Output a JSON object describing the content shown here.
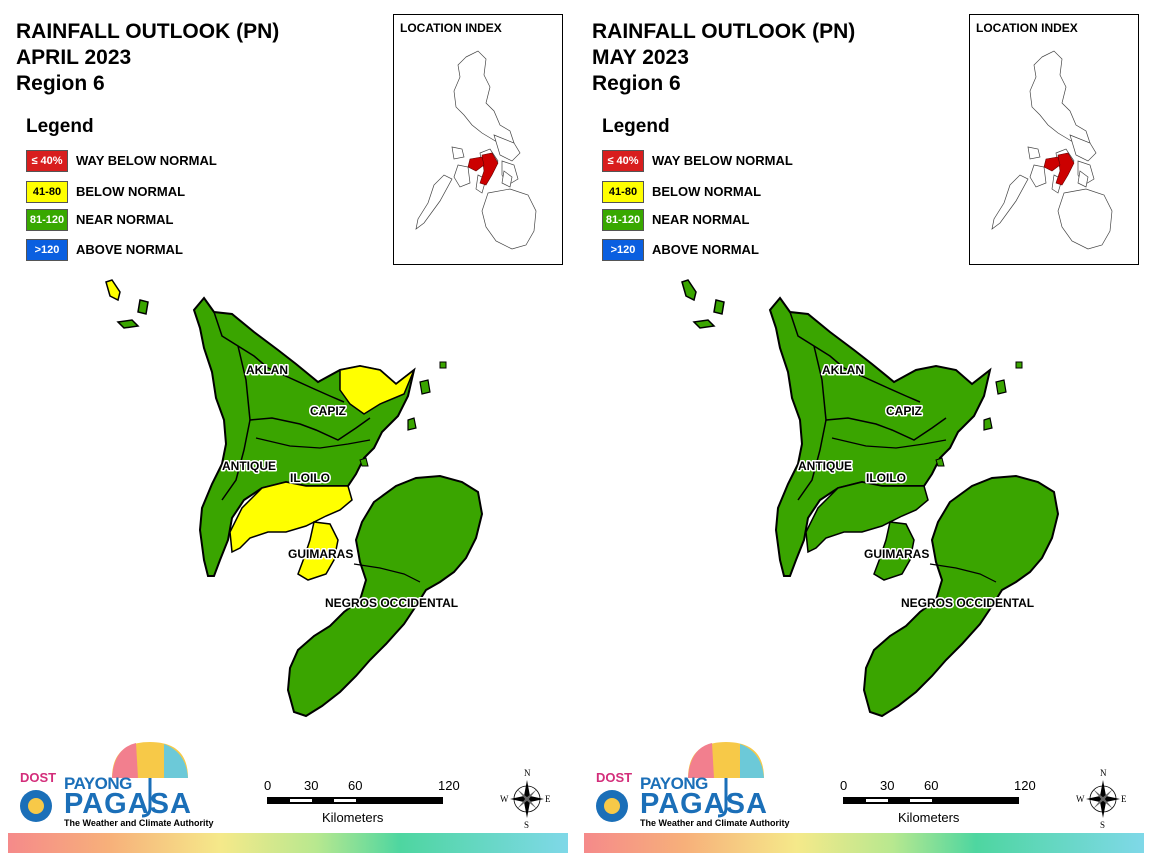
{
  "panels": [
    {
      "title_line1": "RAINFALL OUTLOOK (PN)",
      "title_line2": "APRIL 2023",
      "title_line3": "Region 6",
      "provinces": {
        "aklan": "near",
        "capiz": "near",
        "antique": "near",
        "iloilo": "near",
        "guimaras": "below",
        "negros": "near",
        "capiz_ne": "below",
        "iloilo_s": "below",
        "carabao_island": "below"
      }
    },
    {
      "title_line1": "RAINFALL OUTLOOK (PN)",
      "title_line2": "MAY 2023",
      "title_line3": "Region 6",
      "provinces": {
        "aklan": "near",
        "capiz": "near",
        "antique": "near",
        "iloilo": "near",
        "guimaras": "near",
        "negros": "near",
        "capiz_ne": "near",
        "iloilo_s": "near",
        "carabao_island": "near"
      }
    }
  ],
  "legend": {
    "title": "Legend",
    "items": [
      {
        "range": "≤ 40%",
        "label": "WAY BELOW NORMAL",
        "color": "#d81e1e",
        "text_color": "#ffffff"
      },
      {
        "range": "41-80",
        "label": "BELOW NORMAL",
        "color": "#ffff00",
        "text_color": "#000000"
      },
      {
        "range": "81-120",
        "label": "NEAR NORMAL",
        "color": "#38a800",
        "text_color": "#ffffff"
      },
      {
        "range": ">120",
        "label": "ABOVE NORMAL",
        "color": "#0a5fe0",
        "text_color": "#ffffff"
      }
    ]
  },
  "inset": {
    "title": "LOCATION INDEX",
    "highlight_color": "#cc0000"
  },
  "province_labels": {
    "aklan": "AKLAN",
    "capiz": "CAPIZ",
    "antique": "ANTIQUE",
    "iloilo": "ILOILO",
    "guimaras": "GUIMARAS",
    "negros": "NEGROS OCCIDENTAL"
  },
  "category_colors": {
    "near": "#3aa500",
    "below": "#ffff00"
  },
  "scale": {
    "ticks": [
      "0",
      "30",
      "60",
      "120"
    ],
    "unit": "Kilometers"
  },
  "compass": {
    "n": "N",
    "s": "S",
    "e": "E",
    "w": "W"
  },
  "logo": {
    "dost": "DOST",
    "payong": "PAYONG",
    "pagasa": "PAGASA",
    "tagline": "The Weather and Climate Authority"
  }
}
